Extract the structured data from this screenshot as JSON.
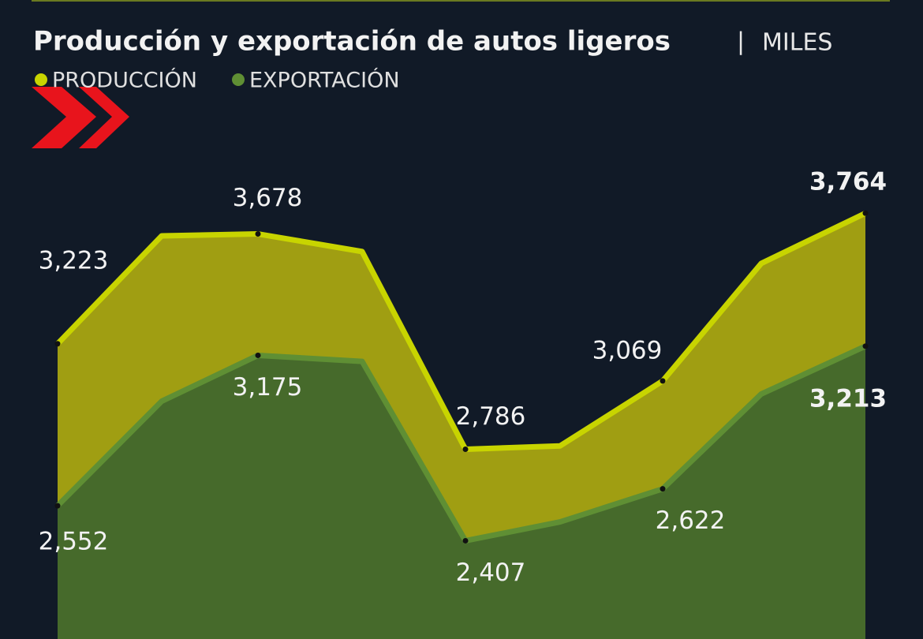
{
  "chart_data": {
    "type": "area",
    "title": "Producción y exportación de autos ligeros",
    "separator": "|",
    "subtitle": "MILES",
    "categories": [
      null,
      null,
      null,
      null,
      null,
      null,
      null,
      null,
      null
    ],
    "ylim": [
      2000,
      4000
    ],
    "series": [
      {
        "name": "PRODUCCIÓN",
        "color": "#c8d400",
        "fill": "#a09e12",
        "values": [
          3223,
          3670,
          3678,
          3605,
          2786,
          2800,
          3069,
          3556,
          3764
        ],
        "value_labels": [
          "3,223",
          null,
          "3,678",
          null,
          "2,786",
          null,
          "3,069",
          null,
          "3,764"
        ]
      },
      {
        "name": "EXPORTACIÓN",
        "color": "#5f8f34",
        "fill": "#466a2b",
        "values": [
          2552,
          2985,
          3175,
          3150,
          2407,
          2485,
          2622,
          3015,
          3213
        ],
        "value_labels": [
          "2,552",
          null,
          "3,175",
          null,
          "2,407",
          null,
          "2,622",
          null,
          "3,213"
        ]
      }
    ]
  }
}
